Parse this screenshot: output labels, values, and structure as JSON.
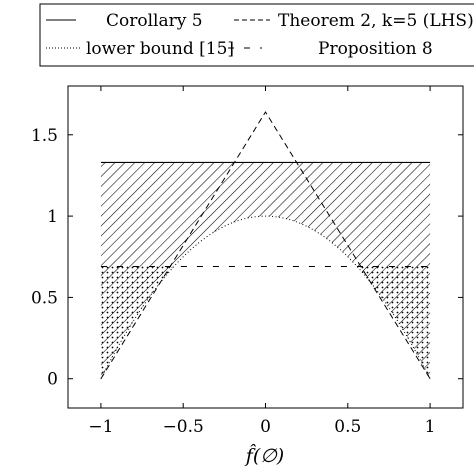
{
  "chart_data": {
    "type": "line",
    "title": "",
    "xlabel": "f̂(∅)",
    "ylabel": "",
    "xlim": [
      -1.2,
      1.2
    ],
    "ylim": [
      -0.18,
      1.8
    ],
    "x_ticks": [
      -1,
      -0.5,
      0,
      0.5,
      1
    ],
    "x_tick_labels": [
      "−1",
      "−0.5",
      "0",
      "0.5",
      "1"
    ],
    "y_ticks": [
      0,
      0.5,
      1,
      1.5
    ],
    "y_tick_labels": [
      "0",
      "0.5",
      "1",
      "1.5"
    ],
    "grid": false,
    "legend_position": "top (above plot)",
    "legend": [
      {
        "label": "Corollary 5",
        "style": "solid"
      },
      {
        "label": "Theorem 2, k=5 (LHS)",
        "style": "dashed"
      },
      {
        "label": "lower bound [15]",
        "style": "dotted"
      },
      {
        "label": "Proposition 8",
        "style": "loosely dashed"
      }
    ],
    "series": [
      {
        "name": "Corollary 5",
        "style": "solid",
        "x": [
          -1,
          1
        ],
        "y": [
          1.33,
          1.33
        ]
      },
      {
        "name": "Theorem 2, k=5 (LHS)",
        "style": "dashed",
        "x": [
          -1,
          0,
          1
        ],
        "y": [
          0.0,
          1.64,
          0.0
        ]
      },
      {
        "name": "lower bound [15]",
        "style": "dotted",
        "x": [
          -1,
          -0.75,
          -0.5,
          -0.25,
          0,
          0.25,
          0.5,
          0.75,
          1
        ],
        "y": [
          0.0,
          0.44,
          0.75,
          0.94,
          1.0,
          0.94,
          0.75,
          0.44,
          0.0
        ]
      },
      {
        "name": "Proposition 8",
        "style": "loosely dashed",
        "x": [
          -1,
          1
        ],
        "y": [
          0.69,
          0.69
        ]
      }
    ],
    "regions": [
      {
        "name": "hatched",
        "between": [
          "lower bound [15]",
          "Corollary 5"
        ],
        "pattern": "diagonal lines"
      },
      {
        "name": "dotted",
        "between": [
          "x-axis",
          "lower bound [15]"
        ],
        "below": "Proposition 8",
        "pattern": "dots"
      }
    ]
  }
}
